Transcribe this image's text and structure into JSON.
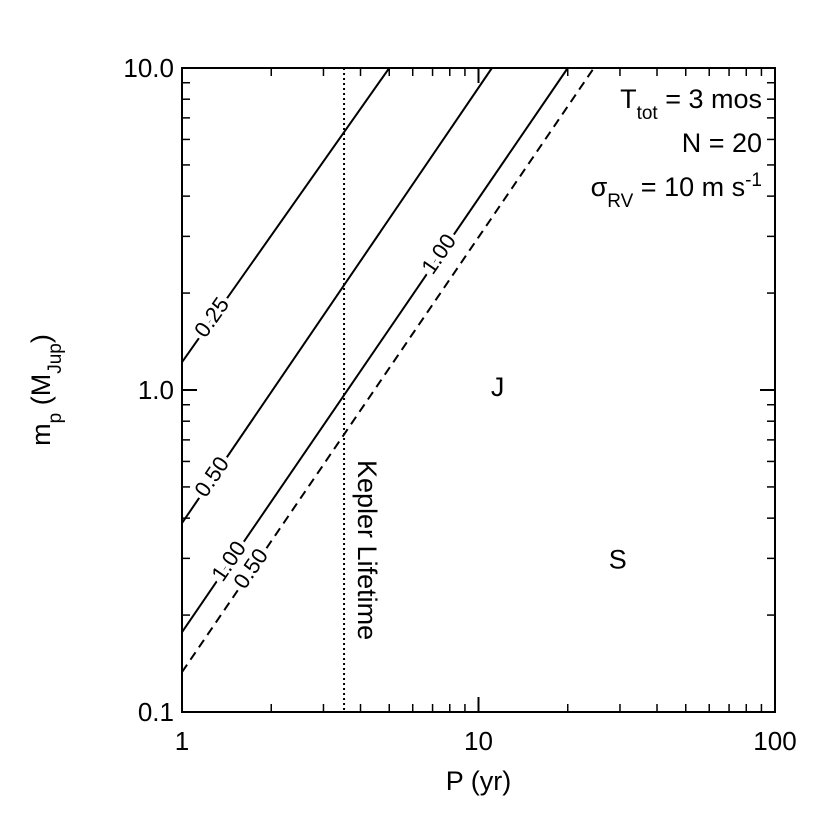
{
  "chart_data": {
    "type": "line",
    "xlog": true,
    "ylog": true,
    "xlim": [
      1,
      100
    ],
    "ylim": [
      0.1,
      10
    ],
    "xticks": [
      1,
      10,
      100
    ],
    "xminorticks": [
      2,
      3,
      4,
      5,
      6,
      7,
      8,
      9,
      20,
      30,
      40,
      50,
      60,
      70,
      80,
      90
    ],
    "yticks": [
      0.1,
      {
        "value": 1,
        "label": "1.0"
      },
      {
        "value": 10,
        "label": "10.0"
      }
    ],
    "yminorticks": [
      0.2,
      0.3,
      0.4,
      0.5,
      0.6,
      0.7,
      0.8,
      0.9,
      2,
      3,
      4,
      5,
      6,
      7,
      8,
      9
    ],
    "xlabel": "P (yr)",
    "ylabel": [
      {
        "text": "m"
      },
      {
        "text": "p",
        "sub": true
      },
      {
        "text": " (M"
      },
      {
        "text": "Jup",
        "sub": true
      },
      {
        "text": ")"
      }
    ],
    "series": [
      {
        "color": "#000",
        "dash": false,
        "labels": [
          "0.25"
        ],
        "x": [
          1,
          5.0
        ],
        "values": [
          1.22,
          10
        ]
      },
      {
        "color": "#000",
        "dash": false,
        "labels": [
          "0.50"
        ],
        "x": [
          1,
          11.1
        ],
        "values": [
          0.386,
          10
        ]
      },
      {
        "color": "#000",
        "dash": false,
        "labels": [
          "1.00",
          "1.00"
        ],
        "x": [
          1,
          20
        ],
        "values": [
          0.177,
          10
        ]
      },
      {
        "color": "#000",
        "dash": true,
        "labels": [
          "0.50"
        ],
        "x": [
          1,
          24.5
        ],
        "values": [
          0.133,
          10
        ]
      }
    ],
    "vlines": [
      {
        "x": 3.52,
        "label": "Kepler Lifetime",
        "dotted": true
      }
    ],
    "annotations": [
      [
        {
          "text": "T"
        },
        {
          "text": "tot",
          "sub": true
        },
        {
          "text": " = 3 mos"
        }
      ],
      [
        {
          "text": "N = 20"
        }
      ],
      [
        {
          "text": "σ"
        },
        {
          "text": "RV",
          "sub": true
        },
        {
          "text": " = 10 m s"
        },
        {
          "text": "-1",
          "sup": true
        }
      ]
    ],
    "points": [
      {
        "label": "J",
        "x": 11.6,
        "y": 1.03
      },
      {
        "label": "S",
        "x": 29.5,
        "y": 0.3
      }
    ]
  }
}
